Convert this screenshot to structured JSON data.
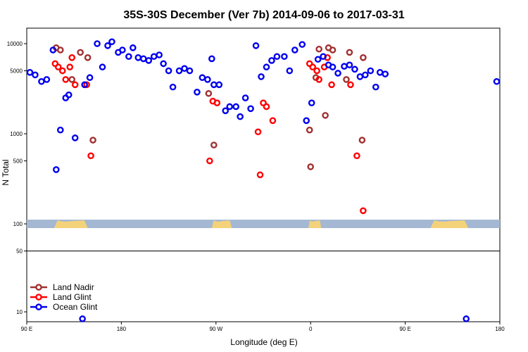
{
  "chart_data": {
    "type": "scatter",
    "title": "35S-30S December (Ver 7b)   2014-09-06 to 2017-03-31",
    "xlabel": "Longitude (deg E)",
    "ylabel": "N Total",
    "x_tick_labels": [
      "90 E",
      "180",
      "90 W",
      "0",
      "90 E",
      "180"
    ],
    "x_ticks": [
      90,
      180,
      270,
      360,
      450,
      540
    ],
    "xlim": [
      90,
      540
    ],
    "y_scale": "log",
    "y_tick_labels": [
      "10000",
      "5000",
      "1000",
      "500",
      "100",
      "50",
      "10"
    ],
    "y_ticks": [
      10000,
      5000,
      1000,
      500,
      100,
      50,
      10
    ],
    "legend_position": "bottom-left",
    "land_strip_level": 100,
    "colors": {
      "land_nadir": "#a03030",
      "land_glint": "#ff0000",
      "ocean_glint": "#0000ee",
      "ocean_strip": "#a4b8d4",
      "land_strip": "#f4d27a"
    },
    "series": [
      {
        "name": "Land Nadir",
        "key": "land_nadir",
        "x": [
          118,
          122,
          133,
          141,
          148,
          153,
          263,
          268,
          359,
          360,
          365,
          368,
          374,
          377,
          381,
          394,
          397,
          410,
          409
        ],
        "y": [
          9000,
          8500,
          4000,
          8000,
          7000,
          850,
          2800,
          750,
          1100,
          430,
          4200,
          8700,
          1600,
          9000,
          8500,
          4000,
          8000,
          7000,
          850
        ]
      },
      {
        "name": "Land Glint",
        "key": "land_glint",
        "x": [
          117,
          120,
          124,
          127,
          131,
          133,
          136,
          147,
          151,
          264,
          267,
          271,
          310,
          312,
          315,
          318,
          324,
          359,
          362,
          366,
          368,
          373,
          376,
          380,
          398,
          404,
          410
        ],
        "y": [
          6000,
          5500,
          5000,
          4000,
          5500,
          7000,
          3500,
          3500,
          570,
          500,
          2300,
          2200,
          1050,
          350,
          2200,
          2000,
          1400,
          6000,
          5500,
          5000,
          4000,
          5500,
          7000,
          3500,
          3500,
          570,
          140
        ],
        "note": "approximate"
      },
      {
        "name": "Ocean Glint",
        "key": "ocean_glint",
        "x": [
          93,
          98,
          104,
          109,
          115,
          118,
          122,
          127,
          130,
          136,
          145,
          150,
          157,
          162,
          167,
          171,
          177,
          181,
          187,
          191,
          196,
          201,
          206,
          211,
          216,
          220,
          225,
          229,
          235,
          240,
          245,
          252,
          257,
          262,
          266,
          268,
          273,
          279,
          283,
          289,
          293,
          298,
          303,
          308,
          313,
          318,
          323,
          328,
          335,
          340,
          345,
          352,
          356,
          361,
          367,
          372,
          377,
          381,
          386,
          392,
          397,
          402,
          407,
          412,
          417,
          422,
          426,
          431,
          537
        ],
        "y": [
          4800,
          4500,
          3800,
          4000,
          8500,
          400,
          1100,
          2500,
          2700,
          900,
          3500,
          4200,
          10000,
          5500,
          9500,
          10500,
          8000,
          8500,
          7200,
          9000,
          7000,
          6800,
          6500,
          7200,
          7500,
          6000,
          5000,
          3300,
          5000,
          5300,
          5000,
          2900,
          4200,
          4000,
          6800,
          3500,
          3500,
          1800,
          2000,
          2000,
          1550,
          2500,
          1900,
          9500,
          4300,
          5500,
          6500,
          7200,
          7200,
          5000,
          8500,
          9800,
          1400,
          2200,
          6700,
          7200,
          5800,
          5500,
          4700,
          5600,
          5800,
          5200,
          4300,
          4500,
          5000,
          3300,
          4800,
          4600,
          3800
        ],
        "note": "approximate"
      }
    ],
    "low_points": [
      {
        "series": "ocean_glint",
        "x": 143,
        "y": 12
      },
      {
        "series": "ocean_glint",
        "x": 508,
        "y": 12
      }
    ]
  }
}
